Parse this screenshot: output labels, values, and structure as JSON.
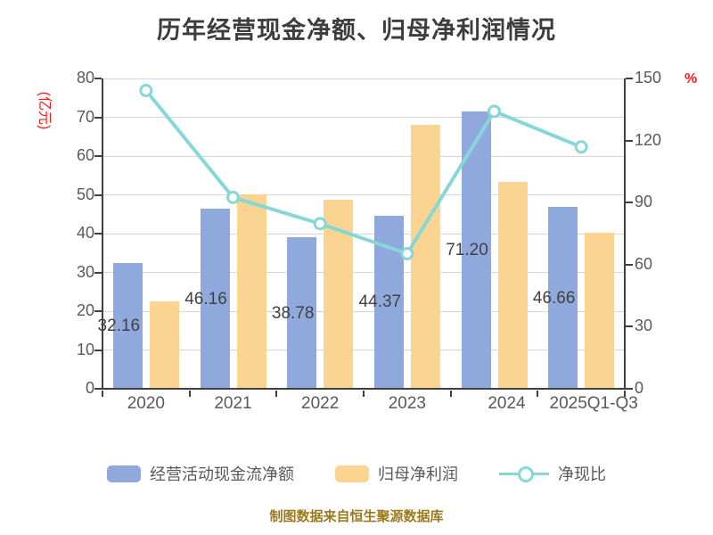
{
  "title": "历年经营现金净额、归母净利润情况",
  "caption": "制图数据来自恒生聚源数据库",
  "left_axis": {
    "unit_label": "(亿元)",
    "ticks": [
      0,
      10,
      20,
      30,
      40,
      50,
      60,
      70,
      80
    ],
    "min": 0,
    "max": 80
  },
  "right_axis": {
    "unit_label": "%",
    "ticks": [
      0,
      30,
      60,
      90,
      120,
      150
    ],
    "min": 0,
    "max": 150
  },
  "legend": {
    "bar1_label": "经营活动现金流净额",
    "bar2_label": "归母净利润",
    "line_label": "净现比"
  },
  "colors": {
    "bar1": "#8fa9dc",
    "bar2": "#fad490",
    "line": "#87d7d7",
    "grid": "#d6d6d6",
    "axis": "#404040",
    "tick_text": "#595959",
    "title_text": "#3d3d3d",
    "red_label": "#ff1a1a",
    "caption_text": "#9c7a1e"
  },
  "chart_data": {
    "type": "bar",
    "subtype": "grouped bars with overlay line on secondary axis",
    "title": "历年经营现金净额、归母净利润情况",
    "categories": [
      "2020",
      "2021",
      "2022",
      "2023",
      "2024",
      "2025Q1-Q3"
    ],
    "series": [
      {
        "name": "经营活动现金流净额",
        "type": "bar",
        "axis": "left",
        "color": "#8fa9dc",
        "values": [
          32.16,
          46.16,
          38.78,
          44.37,
          71.2,
          46.66
        ],
        "labels": [
          "32.16",
          "46.16",
          "38.78",
          "44.37",
          "71.20",
          "46.66"
        ]
      },
      {
        "name": "归母净利润",
        "type": "bar",
        "axis": "left",
        "color": "#fad490",
        "values": [
          22.3,
          49.9,
          48.6,
          67.9,
          53.1,
          39.9
        ]
      },
      {
        "name": "净现比",
        "type": "line",
        "axis": "right",
        "color": "#87d7d7",
        "marker": "circle-white-fill",
        "values": [
          144.2,
          92.5,
          79.8,
          65.3,
          134.1,
          116.9
        ]
      }
    ],
    "left_ylabel": "(亿元)",
    "right_ylabel": "%",
    "left_ylim": [
      0,
      80
    ],
    "right_ylim": [
      0,
      150
    ],
    "grid": true,
    "legend_position": "bottom"
  }
}
